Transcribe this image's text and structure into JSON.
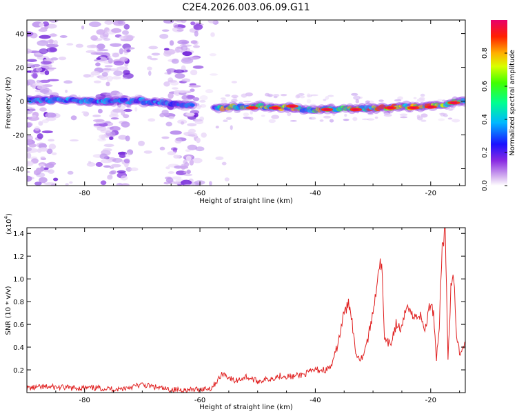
{
  "title": "C2E4.2026.003.06.09.G11",
  "colors": {
    "snr_line": "#e02020",
    "colorbar_top": "#e8006a",
    "colorbar_bottom": "#ffffff"
  },
  "colorbar": {
    "label": "Normalized spectral amplitude",
    "ticks": [
      "0.0",
      "0.2",
      "0.4",
      "0.6",
      "0.8"
    ],
    "range": [
      0,
      1
    ]
  },
  "chart_data": [
    {
      "type": "heatmap",
      "xlabel": "Height of straight line (km)",
      "ylabel": "Frequency (Hz)",
      "xlim": [
        -90,
        -14
      ],
      "ylim": [
        -50,
        48
      ],
      "xticks": [
        -80,
        -60,
        -40,
        -20
      ],
      "xtick_labels": [
        "-80",
        "-60",
        "-40",
        "-20"
      ],
      "yticks": [
        -40,
        -20,
        0,
        20,
        40
      ],
      "ytick_labels": [
        "-40",
        "-20",
        "0",
        "20",
        "40"
      ],
      "trace": {
        "description_x": [
          -90,
          -80,
          -70,
          -57,
          -50,
          -40,
          -30,
          -20,
          -14
        ],
        "center_frequency": [
          1,
          0,
          0,
          -4,
          -3,
          -5,
          -4,
          -3,
          0
        ]
      }
    },
    {
      "type": "line",
      "xlabel": "Height of straight line (km)",
      "ylabel": "SNR (10 * v/v)",
      "scale_label": "(x10",
      "scale_exp": "4",
      "scale_close": ")",
      "xlim": [
        -90,
        -14
      ],
      "ylim": [
        0,
        1.45
      ],
      "xticks": [
        -80,
        -60,
        -40,
        -20
      ],
      "xtick_labels": [
        "-80",
        "-60",
        "-40",
        "-20"
      ],
      "yticks": [
        0.2,
        0.4,
        0.6,
        0.8,
        1.0,
        1.2,
        1.4
      ],
      "ytick_labels": [
        "0.2",
        "0.4",
        "0.6",
        "0.8",
        "1.0",
        "1.2",
        "1.4"
      ],
      "series": [
        {
          "x": [
            -90,
            -86,
            -82,
            -78,
            -74,
            -70,
            -66,
            -62,
            -58,
            -56,
            -54,
            -52,
            -50,
            -48,
            -46,
            -44,
            -42,
            -40,
            -38,
            -37,
            -36,
            -35,
            -34,
            -33,
            -32,
            -31,
            -30,
            -29,
            -28.5,
            -28,
            -27,
            -26,
            -25,
            -24,
            -23,
            -22,
            -21,
            -20,
            -19.5,
            -19,
            -18.5,
            -18,
            -17.5,
            -17,
            -16.5,
            -16,
            -15.5,
            -15,
            -14
          ],
          "y": [
            0.04,
            0.05,
            0.04,
            0.04,
            0.03,
            0.07,
            0.03,
            0.02,
            0.04,
            0.17,
            0.1,
            0.14,
            0.1,
            0.12,
            0.15,
            0.14,
            0.16,
            0.2,
            0.2,
            0.25,
            0.45,
            0.7,
            0.79,
            0.35,
            0.3,
            0.45,
            0.7,
            1.1,
            1.14,
            0.45,
            0.42,
            0.6,
            0.55,
            0.8,
            0.65,
            0.7,
            0.55,
            0.8,
            0.7,
            0.3,
            0.6,
            1.3,
            1.45,
            0.3,
            0.9,
            1.0,
            0.5,
            0.35,
            0.45
          ]
        }
      ]
    }
  ]
}
